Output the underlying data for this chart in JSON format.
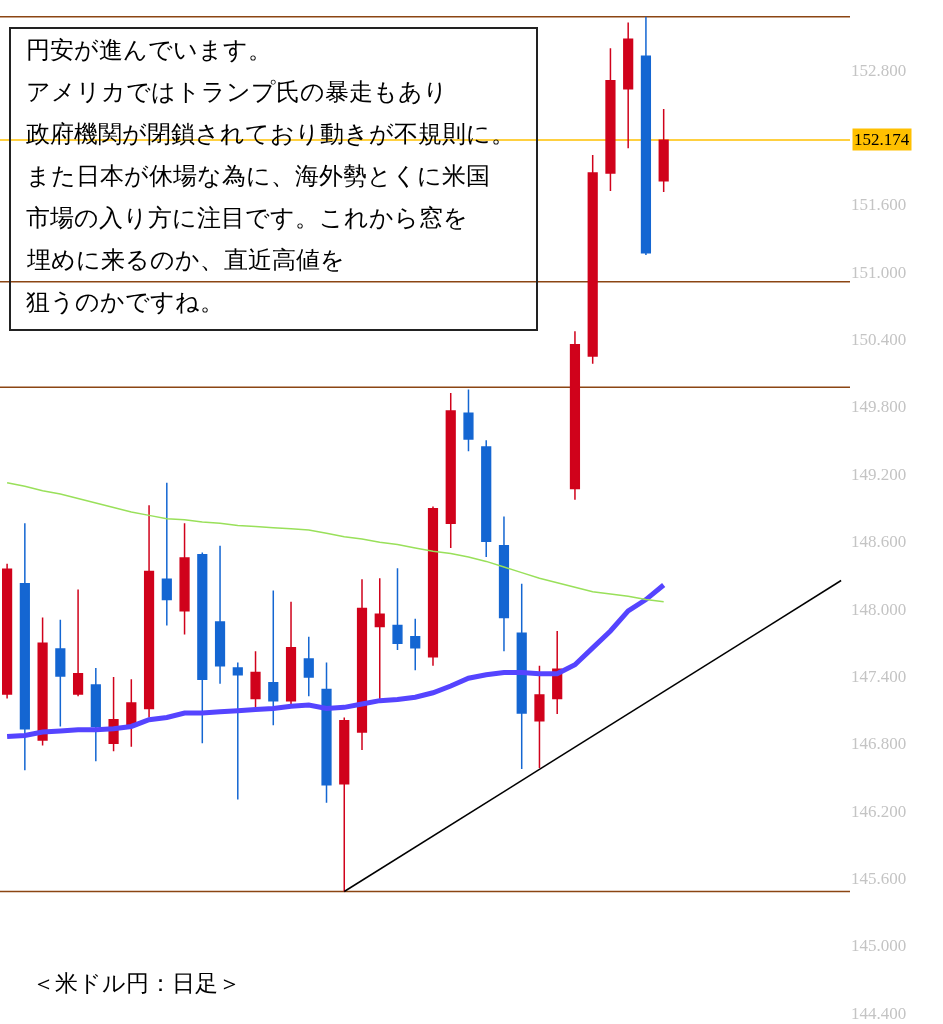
{
  "chart_data": {
    "type": "candlestick",
    "categories": [
      null,
      null,
      null,
      null,
      null,
      null,
      null,
      null,
      null,
      null,
      null,
      null,
      null,
      null,
      null,
      null,
      null,
      null,
      null,
      null,
      null,
      null,
      null,
      null,
      null,
      null,
      null,
      null,
      null,
      null,
      null,
      null,
      null,
      null,
      null,
      null,
      null,
      null,
      null,
      null,
      null,
      null,
      null,
      null,
      null,
      null,
      null,
      null
    ],
    "ohlc": [
      [
        147.24,
        148.4,
        147.2,
        148.35
      ],
      [
        148.22,
        148.76,
        146.56,
        146.93
      ],
      [
        146.83,
        147.92,
        146.78,
        147.69
      ],
      [
        147.64,
        147.9,
        146.95,
        147.4
      ],
      [
        147.24,
        148.17,
        147.22,
        147.42
      ],
      [
        147.32,
        147.47,
        146.64,
        146.95
      ],
      [
        146.8,
        147.39,
        146.73,
        147.01
      ],
      [
        146.97,
        147.37,
        146.77,
        147.16
      ],
      [
        147.11,
        148.92,
        147.03,
        148.33
      ],
      [
        148.26,
        149.12,
        147.85,
        148.08
      ],
      [
        147.98,
        148.76,
        147.77,
        148.45
      ],
      [
        148.48,
        148.5,
        146.8,
        147.37
      ],
      [
        147.88,
        148.56,
        147.33,
        147.49
      ],
      [
        147.47,
        147.52,
        146.3,
        147.41
      ],
      [
        147.2,
        147.62,
        147.12,
        147.43
      ],
      [
        147.34,
        148.16,
        146.96,
        147.18
      ],
      [
        147.18,
        148.06,
        147.14,
        147.65
      ],
      [
        147.55,
        147.75,
        147.22,
        147.39
      ],
      [
        147.28,
        147.52,
        146.27,
        146.43
      ],
      [
        146.44,
        147.03,
        145.48,
        147.0
      ],
      [
        146.9,
        148.26,
        146.74,
        148.0
      ],
      [
        147.84,
        148.27,
        147.18,
        147.95
      ],
      [
        147.85,
        148.36,
        147.63,
        147.69
      ],
      [
        147.75,
        147.91,
        147.45,
        147.65
      ],
      [
        147.57,
        148.91,
        147.49,
        148.89
      ],
      [
        148.76,
        149.92,
        148.54,
        149.76
      ],
      [
        149.74,
        149.95,
        149.4,
        149.51
      ],
      [
        149.44,
        149.5,
        148.46,
        148.6
      ],
      [
        148.56,
        148.82,
        147.62,
        147.92
      ],
      [
        147.78,
        148.22,
        146.57,
        147.07
      ],
      [
        147.0,
        147.49,
        146.58,
        147.23
      ],
      [
        147.2,
        147.8,
        147.06,
        147.46
      ],
      [
        149.07,
        150.47,
        148.97,
        150.35
      ],
      [
        150.25,
        152.04,
        150.18,
        151.88
      ],
      [
        151.88,
        152.99,
        151.72,
        152.7
      ],
      [
        152.63,
        153.22,
        152.1,
        153.07
      ],
      [
        152.92,
        153.27,
        151.15,
        151.17
      ],
      [
        151.81,
        152.45,
        151.71,
        152.17
      ],
      null,
      null,
      null,
      null,
      null,
      null,
      null,
      null,
      null,
      null
    ],
    "colors": [
      "#d0021b",
      "#1466d2",
      "#d0021b",
      "#1466d2",
      "#d0021b",
      "#1466d2",
      "#d0021b",
      "#d0021b",
      "#d0021b",
      "#1466d2",
      "#d0021b",
      "#1466d2",
      "#1466d2",
      "#1466d2",
      "#d0021b",
      "#1466d2",
      "#d0021b",
      "#1466d2",
      "#1466d2",
      "#d0021b",
      "#d0021b",
      "#d0021b",
      "#1466d2",
      "#1466d2",
      "#d0021b",
      "#d0021b",
      "#1466d2",
      "#1466d2",
      "#1466d2",
      "#1466d2",
      "#d0021b",
      "#d0021b",
      "#d0021b",
      "#d0021b",
      "#d0021b",
      "#d0021b",
      "#1466d2",
      "#d0021b",
      null,
      null,
      null,
      null,
      null,
      null,
      null,
      null,
      null,
      null
    ],
    "series": [
      {
        "type": "line",
        "color": "#5544ff",
        "values": [
          146.86,
          146.87,
          146.9,
          146.91,
          146.92,
          146.92,
          146.93,
          146.95,
          147.01,
          147.03,
          147.07,
          147.07,
          147.08,
          147.09,
          147.1,
          147.11,
          147.13,
          147.14,
          147.11,
          147.12,
          147.15,
          147.18,
          147.19,
          147.21,
          147.25,
          147.31,
          147.38,
          147.41,
          147.43,
          147.43,
          147.42,
          147.42,
          147.5,
          147.65,
          147.8,
          147.98,
          148.08,
          148.21,
          null,
          null,
          null,
          null,
          null,
          null,
          null,
          null,
          null,
          null
        ]
      },
      {
        "type": "line",
        "color": "#99e05a",
        "values": [
          149.12,
          149.09,
          149.05,
          149.02,
          148.98,
          148.94,
          148.9,
          148.86,
          148.83,
          148.8,
          148.79,
          148.77,
          148.76,
          148.74,
          148.73,
          148.72,
          148.71,
          148.7,
          148.67,
          148.64,
          148.62,
          148.59,
          148.57,
          148.54,
          148.51,
          148.49,
          148.46,
          148.42,
          148.37,
          148.32,
          148.27,
          148.23,
          148.19,
          148.15,
          148.13,
          148.11,
          148.08,
          148.06,
          null,
          null,
          null,
          null,
          null,
          null,
          null,
          null,
          null,
          null
        ]
      },
      {
        "type": "line",
        "color": "#000000",
        "values": [
          null,
          null,
          null,
          null,
          null,
          null,
          null,
          null,
          null,
          null,
          null,
          null,
          null,
          null,
          null,
          null,
          null,
          null,
          null,
          145.48,
          null,
          null,
          null,
          null,
          null,
          null,
          null,
          null,
          null,
          null,
          null,
          null,
          null,
          null,
          null,
          null,
          null,
          null,
          null,
          null,
          null,
          null,
          null,
          null,
          null,
          null,
          null,
          148.25
        ]
      }
    ],
    "ref_lines": [
      {
        "axis": "y",
        "value": 153.27,
        "color": "#8b4513"
      },
      {
        "axis": "y",
        "value": 150.91,
        "color": "#8b4513"
      },
      {
        "axis": "y",
        "value": 149.97,
        "color": "#8b4513"
      },
      {
        "axis": "y",
        "value": 145.48,
        "color": "#8b4513"
      },
      {
        "axis": "y",
        "value": 152.174,
        "label": "152.174",
        "color": "#ffc000"
      }
    ],
    "ylim": [
      144.3,
      153.42
    ],
    "yticks": [
      {
        "value": 144.4,
        "label": "144.400"
      },
      {
        "value": 145.0,
        "label": "145.000"
      },
      {
        "value": 145.6,
        "label": "145.600"
      },
      {
        "value": 146.2,
        "label": "146.200"
      },
      {
        "value": 146.8,
        "label": "146.800"
      },
      {
        "value": 147.4,
        "label": "147.400"
      },
      {
        "value": 148.0,
        "label": "148.000"
      },
      {
        "value": 148.6,
        "label": "148.600"
      },
      {
        "value": 149.2,
        "label": "149.200"
      },
      {
        "value": 149.8,
        "label": "149.800"
      },
      {
        "value": 150.4,
        "label": "150.400"
      },
      {
        "value": 151.0,
        "label": "151.000"
      },
      {
        "value": 151.6,
        "label": "151.600"
      },
      {
        "value": 152.8,
        "label": "152.800"
      }
    ],
    "tick_labels": "y",
    "annotations": [
      "円安が進んでいます。",
      "アメリカではトランプ氏の暴走もあり",
      "政府機関が閉鎖されており動きが不規則に。",
      "また日本が休場な為に、海外勢とくに米国",
      "市場の入り方に注目です。これから窓を",
      "埋めに来るのか、直近高値を",
      "狙うのかですね。",
      "＜米ドル円：日足＞"
    ]
  }
}
